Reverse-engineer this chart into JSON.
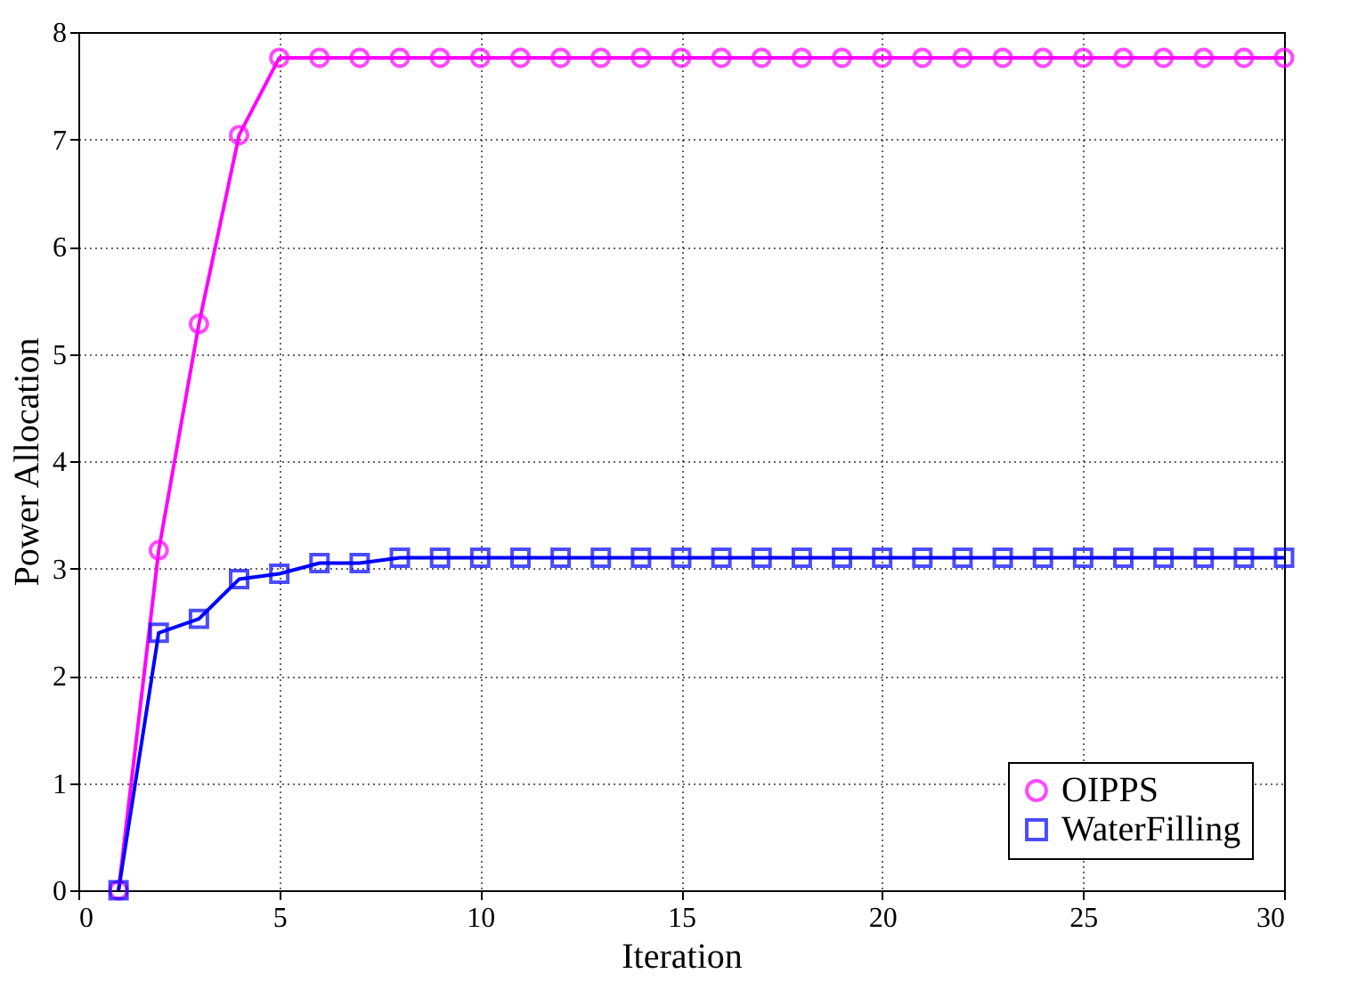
{
  "chart_data": {
    "type": "line",
    "xlabel": "Iteration",
    "ylabel": "Power Allocation",
    "x": [
      1,
      2,
      3,
      4,
      5,
      6,
      7,
      8,
      9,
      10,
      11,
      12,
      13,
      14,
      15,
      16,
      17,
      18,
      19,
      20,
      21,
      22,
      23,
      24,
      25,
      26,
      27,
      28,
      29,
      30
    ],
    "series": [
      {
        "name": "OIPPS",
        "color": "#ff00ff",
        "marker": "circle",
        "values": [
          0,
          3.17,
          5.28,
          7.04,
          7.76,
          7.76,
          7.76,
          7.76,
          7.76,
          7.76,
          7.76,
          7.76,
          7.76,
          7.76,
          7.76,
          7.76,
          7.76,
          7.76,
          7.76,
          7.76,
          7.76,
          7.76,
          7.76,
          7.76,
          7.76,
          7.76,
          7.76,
          7.76,
          7.76,
          7.76
        ]
      },
      {
        "name": "WaterFilling",
        "color": "#0000ff",
        "marker": "square",
        "values": [
          0,
          2.4,
          2.53,
          2.9,
          2.95,
          3.05,
          3.05,
          3.1,
          3.1,
          3.1,
          3.1,
          3.1,
          3.1,
          3.1,
          3.1,
          3.1,
          3.1,
          3.1,
          3.1,
          3.1,
          3.1,
          3.1,
          3.1,
          3.1,
          3.1,
          3.1,
          3.1,
          3.1,
          3.1,
          3.1
        ]
      }
    ],
    "xlim": [
      0,
      30
    ],
    "xticks": [
      0,
      5,
      10,
      15,
      20,
      25,
      30
    ],
    "ylim": [
      0,
      8
    ],
    "yticks": [
      0,
      1,
      2,
      3,
      4,
      5,
      6,
      7,
      8
    ],
    "grid": true,
    "legend": "bottom right",
    "line_style": "solid"
  }
}
